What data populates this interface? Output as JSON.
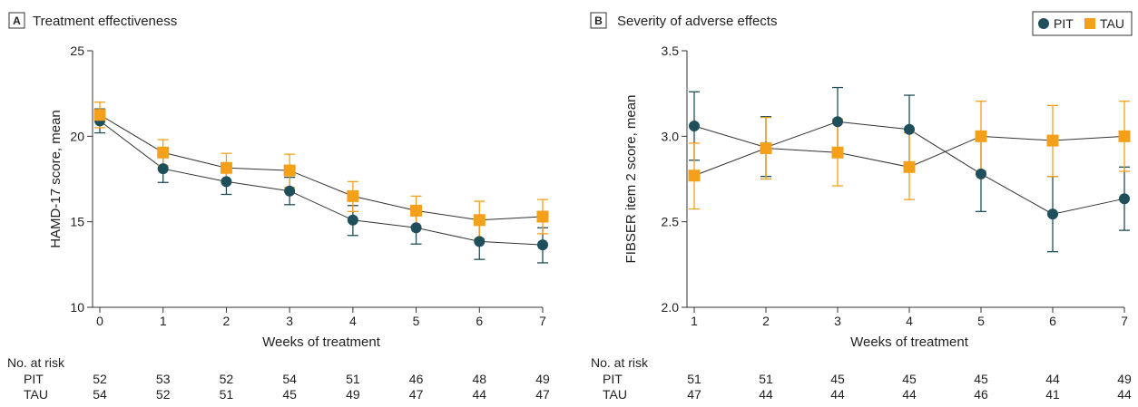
{
  "legend": {
    "items": [
      {
        "label": "PIT",
        "color": "#1f4f5b",
        "marker": "circle"
      },
      {
        "label": "TAU",
        "color": "#f5a01a",
        "marker": "square"
      }
    ]
  },
  "risk_table_label": "No. at risk",
  "chart_data": [
    {
      "type": "line",
      "panel_letter": "A",
      "title": "Treatment effectiveness",
      "xlabel": "Weeks of treatment",
      "ylabel": "HAMD-17 score, mean",
      "x": [
        0,
        1,
        2,
        3,
        4,
        5,
        6,
        7
      ],
      "xticks": [
        "0",
        "1",
        "2",
        "3",
        "4",
        "5",
        "6",
        "7"
      ],
      "ylim": [
        10,
        25
      ],
      "yticks": [
        "10",
        "15",
        "20",
        "25"
      ],
      "ytick_values": [
        10,
        15,
        20,
        25
      ],
      "grid": false,
      "legend": "none",
      "series": [
        {
          "name": "PIT",
          "color": "#1f4f5b",
          "marker": "circle",
          "values": [
            20.9,
            18.1,
            17.35,
            16.8,
            15.1,
            14.65,
            13.85,
            13.65
          ],
          "error_low": [
            20.2,
            17.3,
            16.6,
            16.0,
            14.2,
            13.7,
            12.8,
            12.6
          ],
          "error_high": [
            21.6,
            18.8,
            18.1,
            17.6,
            15.95,
            15.5,
            14.85,
            14.65
          ]
        },
        {
          "name": "TAU",
          "color": "#f5a01a",
          "marker": "square",
          "values": [
            21.25,
            19.05,
            18.15,
            18.0,
            16.5,
            15.65,
            15.1,
            15.3
          ],
          "error_low": [
            20.5,
            18.3,
            17.3,
            17.0,
            15.6,
            14.75,
            14.0,
            14.3
          ],
          "error_high": [
            22.0,
            19.8,
            19.0,
            18.95,
            17.35,
            16.5,
            16.2,
            16.3
          ]
        }
      ],
      "at_risk": {
        "PIT": [
          "52",
          "53",
          "52",
          "54",
          "51",
          "46",
          "48",
          "49"
        ],
        "TAU": [
          "54",
          "52",
          "51",
          "45",
          "49",
          "47",
          "44",
          "47"
        ]
      }
    },
    {
      "type": "line",
      "panel_letter": "B",
      "title": "Severity of adverse effects",
      "xlabel": "Weeks of treatment",
      "ylabel": "FIBSER item 2 score, mean",
      "x": [
        1,
        2,
        3,
        4,
        5,
        6,
        7
      ],
      "xticks": [
        "1",
        "2",
        "3",
        "4",
        "5",
        "6",
        "7"
      ],
      "ylim": [
        2.0,
        3.5
      ],
      "yticks": [
        "2.0",
        "2.5",
        "3.0",
        "3.5"
      ],
      "ytick_values": [
        2.0,
        2.5,
        3.0,
        3.5
      ],
      "grid": false,
      "legend": "top-right",
      "series": [
        {
          "name": "PIT",
          "color": "#1f4f5b",
          "marker": "circle",
          "values": [
            3.06,
            2.935,
            3.085,
            3.04,
            2.78,
            2.545,
            2.635
          ],
          "error_low": [
            2.86,
            2.765,
            2.89,
            2.84,
            2.56,
            2.325,
            2.45
          ],
          "error_high": [
            3.26,
            3.115,
            3.285,
            3.24,
            3.0,
            2.765,
            2.82
          ]
        },
        {
          "name": "TAU",
          "color": "#f5a01a",
          "marker": "square",
          "values": [
            2.77,
            2.93,
            2.905,
            2.82,
            3.0,
            2.975,
            3.0
          ],
          "error_low": [
            2.575,
            2.75,
            2.71,
            2.63,
            2.795,
            2.765,
            2.795
          ],
          "error_high": [
            2.96,
            3.11,
            3.1,
            3.02,
            3.205,
            3.18,
            3.205
          ]
        }
      ],
      "at_risk": {
        "PIT": [
          "51",
          "51",
          "45",
          "45",
          "45",
          "44",
          "49"
        ],
        "TAU": [
          "47",
          "44",
          "44",
          "44",
          "46",
          "41",
          "44"
        ]
      }
    }
  ]
}
